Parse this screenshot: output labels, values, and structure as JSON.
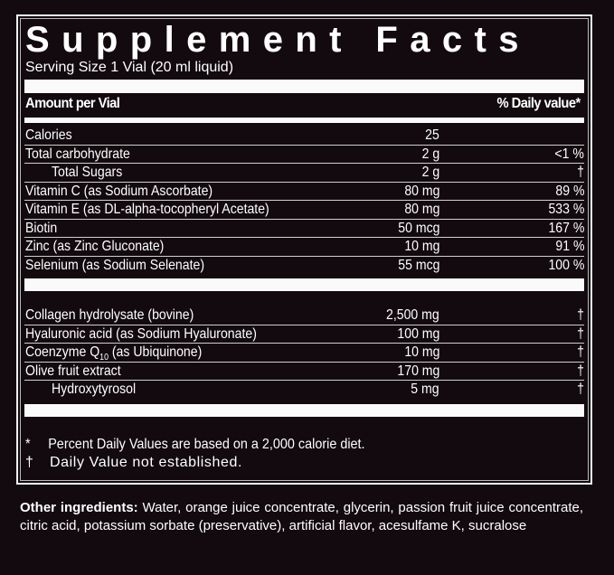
{
  "title": "Supplement Facts",
  "serving_size": "Serving Size 1 Vial (20 ml liquid)",
  "header": {
    "amount": "Amount per Vial",
    "daily_value": "% Daily value*"
  },
  "nutrients": [
    {
      "name": "Calories",
      "amount": "25",
      "dv": ""
    },
    {
      "name": "Total carbohydrate",
      "amount": "2 g",
      "dv": "<1 %"
    },
    {
      "name": "Total Sugars",
      "amount": "2 g",
      "dv": "†",
      "indent": true
    },
    {
      "name": "Vitamin C (as Sodium Ascorbate)",
      "amount": "80 mg",
      "dv": "89 %"
    },
    {
      "name": "Vitamin E (as DL-alpha-tocopheryl Acetate)",
      "amount": "80 mg",
      "dv": "533 %"
    },
    {
      "name": "Biotin",
      "amount": "50 mcg",
      "dv": "167 %"
    },
    {
      "name": "Zinc (as Zinc Gluconate)",
      "amount": "10 mg",
      "dv": "91 %"
    },
    {
      "name": "Selenium (as Sodium Selenate)",
      "amount": "55 mcg",
      "dv": "100 %"
    }
  ],
  "other_actives": [
    {
      "name": "Collagen hydrolysate (bovine)",
      "amount": "2,500 mg",
      "dv": "†"
    },
    {
      "name": "Hyaluronic acid (as Sodium Hyaluronate)",
      "amount": "100 mg",
      "dv": "†"
    },
    {
      "name_pre": "Coenzyme Q",
      "name_sub": "10",
      "name_post": " (as Ubiquinone)",
      "amount": "10 mg",
      "dv": "†"
    },
    {
      "name": "Olive fruit extract",
      "amount": "170 mg",
      "dv": "†"
    },
    {
      "name": "Hydroxytyrosol",
      "amount": "5 mg",
      "dv": "†",
      "indent": true
    }
  ],
  "footnotes": [
    {
      "symbol": "*",
      "text": "Percent Daily Values are based on a 2,000 calorie diet."
    },
    {
      "symbol": "†",
      "text": "Daily Value not established."
    }
  ],
  "other_ingredients": {
    "label": "Other ingredients:",
    "text": " Water, orange juice concentrate, glycerin, passion fruit juice concentrate, citric acid, potassium sorbate (preservative), artificial flavor, acesulfame K, sucralose"
  }
}
